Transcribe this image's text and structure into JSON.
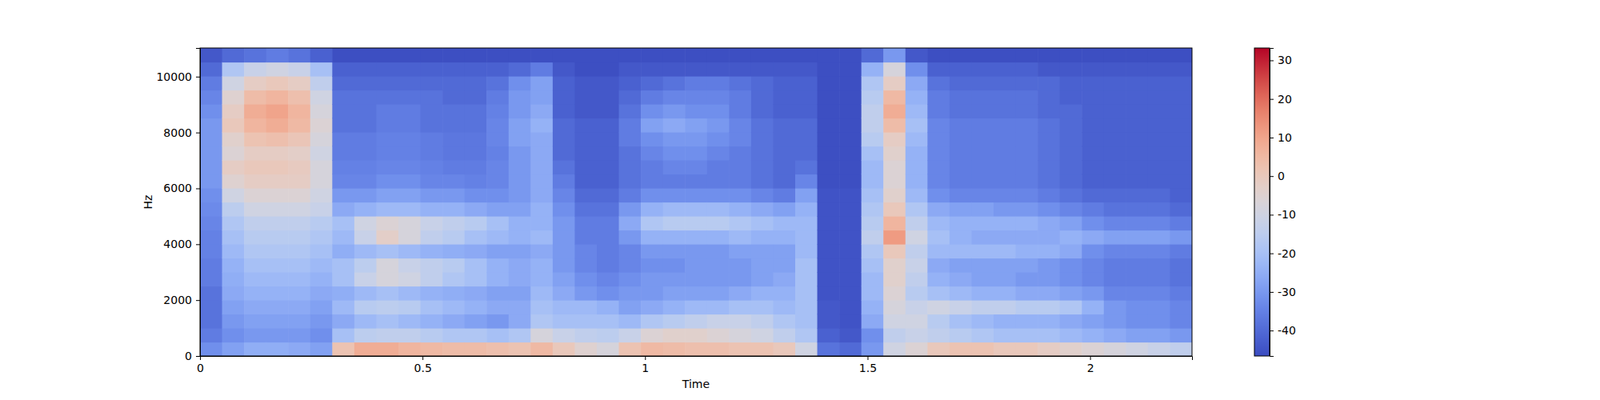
{
  "chart_data": {
    "type": "heatmap",
    "x_label": "Time",
    "y_label": "Hz",
    "xlim": [
      0,
      2.229
    ],
    "xticks": [
      0,
      0.5,
      1,
      1.5,
      2
    ],
    "ylim": [
      0,
      11025
    ],
    "yticks": [
      0,
      2000,
      4000,
      6000,
      8000,
      10000
    ],
    "colorbar": {
      "range": [
        -46.6,
        33.2
      ],
      "ticks": [
        -40,
        -30,
        -20,
        -10,
        0,
        10,
        20,
        30
      ]
    },
    "z": [
      [
        -32,
        -36,
        -38,
        -38,
        -38,
        -36,
        -36,
        -35,
        -35,
        -34,
        -33,
        -32,
        -30,
        -30,
        -30,
        -30,
        -30,
        -32,
        -34,
        -36,
        -40,
        -44
      ],
      [
        -28,
        -32,
        -30,
        -28,
        -26,
        -25,
        -24,
        -22,
        -20,
        -18,
        -15,
        -10,
        -5,
        -2,
        -6,
        -4,
        0,
        -2,
        -5,
        -10,
        -18,
        -40
      ],
      [
        -25,
        -30,
        -28,
        -26,
        -24,
        -22,
        -20,
        -18,
        -16,
        -14,
        -10,
        -6,
        -2,
        0,
        -2,
        2,
        6,
        8,
        4,
        -2,
        -12,
        -38
      ],
      [
        -25,
        -30,
        -28,
        -26,
        -24,
        -22,
        -20,
        -18,
        -16,
        -14,
        -10,
        -6,
        -2,
        0,
        -2,
        3,
        8,
        10,
        6,
        0,
        -10,
        -36
      ],
      [
        -26,
        -30,
        -28,
        -26,
        -24,
        -22,
        -20,
        -18,
        -16,
        -14,
        -10,
        -6,
        -2,
        -1,
        -3,
        1,
        5,
        6,
        3,
        -2,
        -12,
        -38
      ],
      [
        -28,
        -32,
        -30,
        -28,
        -26,
        -24,
        -22,
        -20,
        -18,
        -16,
        -12,
        -10,
        -8,
        -8,
        -10,
        -8,
        -6,
        -8,
        -10,
        -14,
        -20,
        -42
      ],
      [
        2,
        -20,
        -26,
        -22,
        -25,
        -20,
        -20,
        -25,
        -22,
        -20,
        -26,
        -30,
        -34,
        -35,
        -36,
        -36,
        -38,
        -38,
        -38,
        -40,
        -42,
        -46
      ],
      [
        8,
        -15,
        -22,
        -16,
        -22,
        -12,
        -15,
        -22,
        -12,
        -10,
        -24,
        -30,
        -34,
        -35,
        -36,
        -36,
        -38,
        -38,
        -38,
        -40,
        -42,
        -46
      ],
      [
        8,
        -14,
        -20,
        -15,
        -20,
        -8,
        -8,
        -20,
        -3,
        -6,
        -22,
        -28,
        -32,
        -34,
        -35,
        -35,
        -36,
        -36,
        -38,
        -40,
        -42,
        -46
      ],
      [
        6,
        -14,
        -22,
        -16,
        -22,
        -10,
        -12,
        -22,
        -8,
        -8,
        -22,
        -28,
        -32,
        -34,
        -35,
        -35,
        -36,
        -36,
        -38,
        -40,
        -42,
        -46
      ],
      [
        5,
        -16,
        -24,
        -20,
        -24,
        -14,
        -14,
        -24,
        -14,
        -12,
        -24,
        -30,
        -34,
        -35,
        -36,
        -36,
        -38,
        -38,
        -38,
        -40,
        -42,
        -46
      ],
      [
        4,
        -18,
        -26,
        -22,
        -25,
        -18,
        -16,
        -25,
        -16,
        -14,
        -24,
        -30,
        -34,
        -36,
        -37,
        -37,
        -38,
        -38,
        -40,
        -40,
        -42,
        -46
      ],
      [
        4,
        -18,
        -28,
        -24,
        -26,
        -20,
        -20,
        -26,
        -20,
        -16,
        -26,
        -32,
        -35,
        -36,
        -37,
        -37,
        -38,
        -38,
        -40,
        -40,
        -42,
        -46
      ],
      [
        3,
        -20,
        -30,
        -26,
        -28,
        -24,
        -24,
        -28,
        -22,
        -20,
        -28,
        -32,
        -34,
        -34,
        -35,
        -34,
        -34,
        -35,
        -36,
        -38,
        -42,
        -46
      ],
      [
        2,
        -18,
        -26,
        -26,
        -28,
        -26,
        -26,
        -28,
        -24,
        -24,
        -28,
        -30,
        -30,
        -30,
        -30,
        -28,
        -28,
        -30,
        -30,
        -32,
        -40,
        -46
      ],
      [
        5,
        -8,
        -18,
        -20,
        -22,
        -24,
        -24,
        -26,
        -22,
        -24,
        -24,
        -26,
        -26,
        -26,
        -26,
        -26,
        -24,
        -26,
        -28,
        -28,
        -36,
        -46
      ],
      [
        0,
        -12,
        -20,
        -22,
        -26,
        -28,
        -30,
        -30,
        -30,
        -30,
        -32,
        -34,
        -36,
        -38,
        -40,
        -40,
        -40,
        -42,
        -42,
        -42,
        -44,
        -46
      ],
      [
        -5,
        -14,
        -20,
        -22,
        -30,
        -32,
        -34,
        -34,
        -36,
        -36,
        -38,
        -40,
        -42,
        -42,
        -42,
        -42,
        -42,
        -44,
        -44,
        -44,
        -46,
        -46
      ],
      [
        -8,
        -15,
        -20,
        -24,
        -32,
        -34,
        -36,
        -36,
        -36,
        -36,
        -38,
        -40,
        -42,
        -42,
        -42,
        -42,
        -42,
        -44,
        -44,
        -44,
        -46,
        -46
      ],
      [
        2,
        -12,
        -22,
        -28,
        -30,
        -32,
        -34,
        -34,
        -30,
        -26,
        -30,
        -36,
        -38,
        -38,
        -38,
        -36,
        -36,
        -38,
        -40,
        -42,
        -44,
        -46
      ],
      [
        5,
        -6,
        -18,
        -26,
        -30,
        -30,
        -32,
        -30,
        -24,
        -18,
        -24,
        -32,
        -36,
        -36,
        -34,
        -32,
        -28,
        -32,
        -36,
        -40,
        -44,
        -46
      ],
      [
        4,
        -4,
        -16,
        -24,
        -28,
        -30,
        -32,
        -30,
        -24,
        -16,
        -22,
        -32,
        -36,
        -34,
        -32,
        -30,
        -26,
        -30,
        -34,
        -38,
        -44,
        -46
      ],
      [
        3,
        -4,
        -14,
        -22,
        -28,
        -30,
        -30,
        -30,
        -24,
        -16,
        -22,
        -32,
        -36,
        -34,
        -32,
        -30,
        -28,
        -32,
        -34,
        -36,
        -44,
        -46
      ],
      [
        3,
        -6,
        -12,
        -22,
        -28,
        -30,
        -30,
        -30,
        -24,
        -16,
        -22,
        -32,
        -36,
        -36,
        -34,
        -32,
        -30,
        -32,
        -34,
        -36,
        -44,
        -46
      ],
      [
        2,
        -8,
        -12,
        -20,
        -26,
        -30,
        -30,
        -28,
        -22,
        -18,
        -24,
        -32,
        -36,
        -36,
        -36,
        -34,
        -34,
        -36,
        -36,
        -38,
        -44,
        -46
      ],
      [
        2,
        -10,
        -14,
        -20,
        -24,
        -28,
        -28,
        -28,
        -24,
        -20,
        -26,
        -34,
        -38,
        -38,
        -38,
        -38,
        -38,
        -40,
        -40,
        -40,
        -44,
        -46
      ],
      [
        0,
        -14,
        -18,
        -22,
        -24,
        -26,
        -28,
        -28,
        -24,
        -22,
        -28,
        -36,
        -40,
        -40,
        -40,
        -40,
        -40,
        -42,
        -42,
        -42,
        -44,
        -46
      ],
      [
        -10,
        -18,
        -20,
        -20,
        -20,
        -20,
        -20,
        -22,
        -22,
        -22,
        -24,
        -28,
        -34,
        -38,
        -40,
        -40,
        -40,
        -42,
        -42,
        -42,
        -44,
        -46
      ],
      [
        -38,
        -42,
        -44,
        -44,
        -45,
        -45,
        -45,
        -45,
        -45,
        -45,
        -45,
        -45,
        -46,
        -46,
        -46,
        -46,
        -46,
        -46,
        -46,
        -46,
        -46,
        -46
      ],
      [
        -40,
        -44,
        -45,
        -45,
        -45,
        -45,
        -45,
        -45,
        -45,
        -45,
        -45,
        -45,
        -46,
        -46,
        -46,
        -46,
        -46,
        -46,
        -46,
        -46,
        -46,
        -46
      ],
      [
        -30,
        -32,
        -26,
        -24,
        -22,
        -22,
        -20,
        -18,
        -14,
        -16,
        -18,
        -20,
        -22,
        -22,
        -20,
        -16,
        -14,
        -14,
        -16,
        -18,
        -24,
        -40
      ],
      [
        -10,
        -14,
        -10,
        -8,
        -6,
        -4,
        -4,
        0,
        12,
        6,
        0,
        -4,
        -6,
        -6,
        -4,
        -2,
        4,
        8,
        5,
        -2,
        -8,
        -30
      ],
      [
        -6,
        -12,
        -10,
        -12,
        -16,
        -14,
        -12,
        -14,
        -10,
        -14,
        -18,
        -22,
        -24,
        -24,
        -24,
        -22,
        -20,
        -22,
        -24,
        -26,
        -32,
        -44
      ],
      [
        0,
        -14,
        -16,
        -10,
        -20,
        -24,
        -26,
        -22,
        -20,
        -22,
        -26,
        -32,
        -34,
        -34,
        -34,
        -34,
        -34,
        -36,
        -36,
        -38,
        -42,
        -46
      ],
      [
        2,
        -16,
        -20,
        -12,
        -22,
        -26,
        -28,
        -22,
        -24,
        -24,
        -28,
        -34,
        -36,
        -36,
        -36,
        -36,
        -36,
        -38,
        -38,
        -40,
        -42,
        -46
      ],
      [
        2,
        -18,
        -22,
        -14,
        -24,
        -28,
        -28,
        -22,
        -26,
        -24,
        -28,
        -34,
        -36,
        -36,
        -36,
        -36,
        -36,
        -38,
        -38,
        -40,
        -42,
        -46
      ],
      [
        0,
        -20,
        -24,
        -14,
        -24,
        -28,
        -28,
        -22,
        -26,
        -24,
        -30,
        -34,
        -36,
        -36,
        -36,
        -36,
        -36,
        -38,
        -38,
        -40,
        -42,
        -46
      ],
      [
        0,
        -20,
        -24,
        -16,
        -26,
        -30,
        -28,
        -24,
        -26,
        -24,
        -30,
        -34,
        -36,
        -36,
        -36,
        -36,
        -36,
        -38,
        -38,
        -40,
        -42,
        -46
      ],
      [
        -2,
        -20,
        -24,
        -16,
        -26,
        -30,
        -30,
        -24,
        -26,
        -26,
        -32,
        -36,
        -38,
        -38,
        -38,
        -38,
        -38,
        -40,
        -40,
        -40,
        -44,
        -46
      ],
      [
        -4,
        -22,
        -26,
        -18,
        -28,
        -32,
        -32,
        -26,
        -24,
        -28,
        -34,
        -38,
        -40,
        -40,
        -40,
        -40,
        -40,
        -40,
        -42,
        -42,
        -44,
        -46
      ],
      [
        -6,
        -24,
        -28,
        -24,
        -30,
        -34,
        -34,
        -32,
        -26,
        -32,
        -36,
        -40,
        -42,
        -42,
        -42,
        -42,
        -42,
        -42,
        -42,
        -42,
        -44,
        -46
      ],
      [
        -8,
        -26,
        -30,
        -30,
        -34,
        -36,
        -36,
        -34,
        -28,
        -34,
        -38,
        -40,
        -42,
        -42,
        -42,
        -42,
        -42,
        -42,
        -42,
        -42,
        -44,
        -46
      ],
      [
        -10,
        -28,
        -32,
        -32,
        -34,
        -36,
        -36,
        -34,
        -28,
        -34,
        -38,
        -40,
        -42,
        -42,
        -42,
        -42,
        -42,
        -42,
        -42,
        -42,
        -44,
        -46
      ],
      [
        -12,
        -28,
        -32,
        -32,
        -34,
        -36,
        -36,
        -34,
        -28,
        -34,
        -38,
        -40,
        -42,
        -42,
        -42,
        -42,
        -42,
        -42,
        -42,
        -42,
        -44,
        -46
      ],
      [
        -14,
        -30,
        -34,
        -34,
        -36,
        -38,
        -38,
        -36,
        -30,
        -36,
        -40,
        -42,
        -42,
        -42,
        -42,
        -42,
        -42,
        -42,
        -42,
        -42,
        -44,
        -46
      ]
    ]
  }
}
